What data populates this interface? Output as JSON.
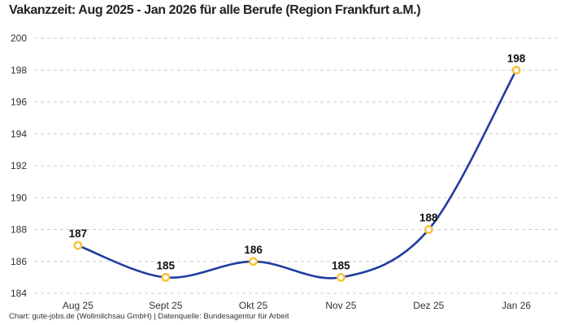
{
  "title": "Vakanzzeit: Aug 2025 - Jan 2026 für alle Berufe (Region Frankfurt a.M.)",
  "footer": "Chart: gute-jobs.de (Wollmilchsau GmbH) | Datenquelle: Bundesagentur für Arbeit",
  "chart_data": {
    "type": "line",
    "title": "Vakanzzeit: Aug 2025 - Jan 2026 für alle Berufe (Region Frankfurt a.M.)",
    "categories": [
      "Aug 25",
      "Sept 25",
      "Okt 25",
      "Nov 25",
      "Dez 25",
      "Jan 26"
    ],
    "values": [
      187,
      185,
      186,
      185,
      188,
      198
    ],
    "xlabel": "",
    "ylabel": "",
    "ylim": [
      184,
      200
    ],
    "ytick_step": 2,
    "yticks": [
      184,
      186,
      188,
      190,
      192,
      194,
      196,
      198,
      200
    ],
    "grid": "horizontal-dashed",
    "legend": "none",
    "smooth": true,
    "show_point_labels": true,
    "attribution": "Chart: gute-jobs.de (Wollmilchsau GmbH) | Datenquelle: Bundesagentur für Arbeit",
    "colors": {
      "line": "#1f3da0",
      "marker_stroke": "#f7c137",
      "marker_fill": "#ffffff",
      "grid": "#cccccc",
      "axis_label": "#333333",
      "value_label": "#111111",
      "title": "#232323",
      "background": "#ffffff"
    }
  }
}
